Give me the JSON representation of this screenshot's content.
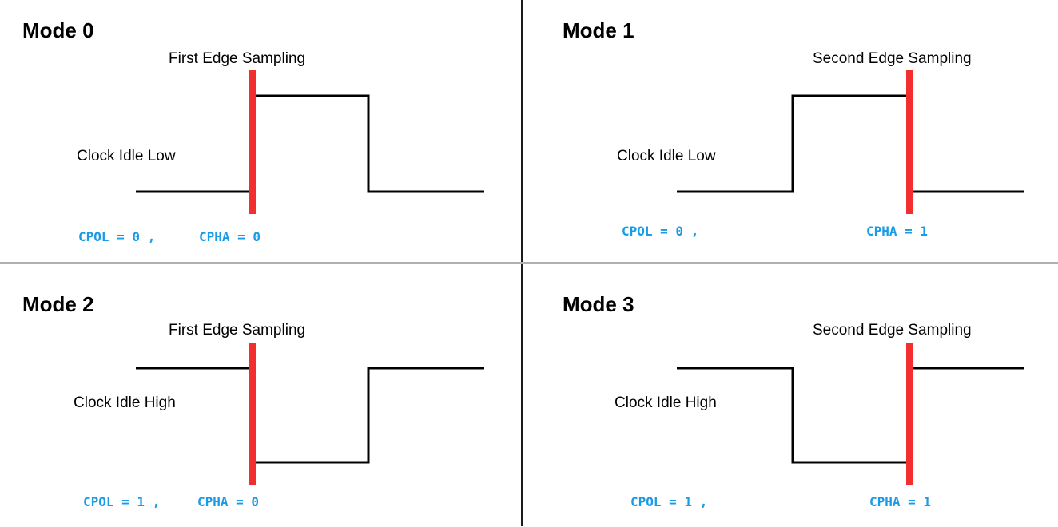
{
  "colors": {
    "clock_line": "#000000",
    "sample_marker": "#f22e2e",
    "param_text": "#1a9be6",
    "divider_vertical": "#1a1a1a",
    "divider_horizontal": "#b0b0b0"
  },
  "modes": [
    {
      "title": "Mode 0",
      "sampling": "First Edge Sampling",
      "idle": "Clock Idle Low",
      "cpol": "CPOL = 0 ,",
      "cpha": "CPHA = 0",
      "idle_level": "low",
      "sample_edge": "first"
    },
    {
      "title": "Mode 1",
      "sampling": "Second Edge Sampling",
      "idle": "Clock Idle Low",
      "cpol": "CPOL = 0 ,",
      "cpha": "CPHA = 1",
      "idle_level": "low",
      "sample_edge": "second"
    },
    {
      "title": "Mode 2",
      "sampling": "First Edge Sampling",
      "idle": "Clock Idle High",
      "cpol": "CPOL = 1 ,",
      "cpha": "CPHA = 0",
      "idle_level": "high",
      "sample_edge": "first"
    },
    {
      "title": "Mode 3",
      "sampling": "Second Edge Sampling",
      "idle": "Clock Idle High",
      "cpol": "CPOL = 1 ,",
      "cpha": "CPHA = 1",
      "idle_level": "high",
      "sample_edge": "second"
    }
  ]
}
